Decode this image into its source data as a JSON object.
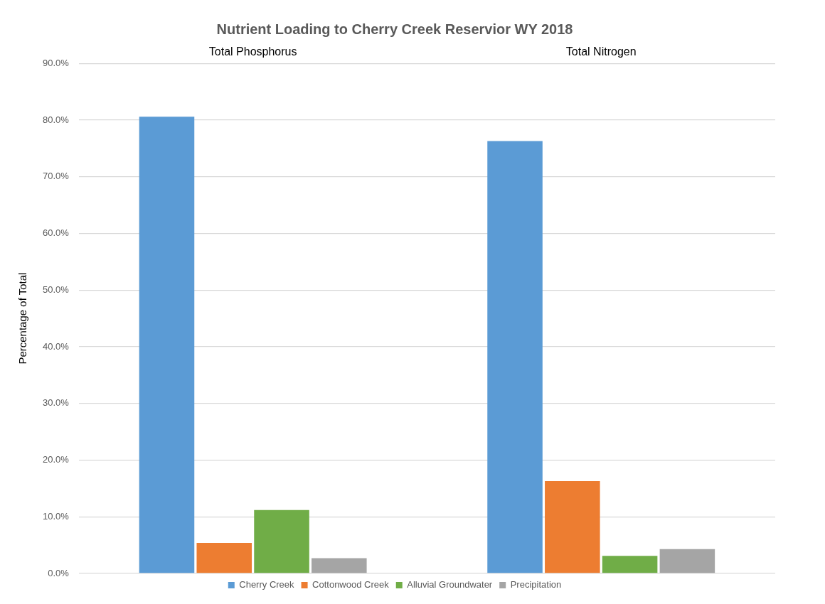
{
  "chart_data": {
    "type": "bar",
    "title": "Nutrient Loading to Cherry Creek Reservior WY 2018",
    "ylabel": "Percentage of Total",
    "categories": [
      "Total Phosphorus",
      "Total Nitrogen"
    ],
    "series": [
      {
        "name": "Cherry Creek",
        "color": "#5b9bd5",
        "values": [
          80.6,
          76.3
        ]
      },
      {
        "name": "Cottonwood Creek",
        "color": "#ed7d31",
        "values": [
          5.4,
          16.3
        ]
      },
      {
        "name": "Alluvial Groundwater",
        "color": "#70ad47",
        "values": [
          11.2,
          3.1
        ]
      },
      {
        "name": "Precipitation",
        "color": "#a5a5a5",
        "values": [
          2.7,
          4.3
        ]
      }
    ],
    "ylim": [
      0,
      90
    ],
    "yticks": [
      {
        "value": 0,
        "label": "0.0%"
      },
      {
        "value": 10,
        "label": "10.0%"
      },
      {
        "value": 20,
        "label": "20.0%"
      },
      {
        "value": 30,
        "label": "30.0%"
      },
      {
        "value": 40,
        "label": "40.0%"
      },
      {
        "value": 50,
        "label": "50.0%"
      },
      {
        "value": 60,
        "label": "60.0%"
      },
      {
        "value": 70,
        "label": "70.0%"
      },
      {
        "value": 80,
        "label": "80.0%"
      },
      {
        "value": 90,
        "label": "90.0%"
      }
    ],
    "grid": "y",
    "legend": "bottom"
  }
}
